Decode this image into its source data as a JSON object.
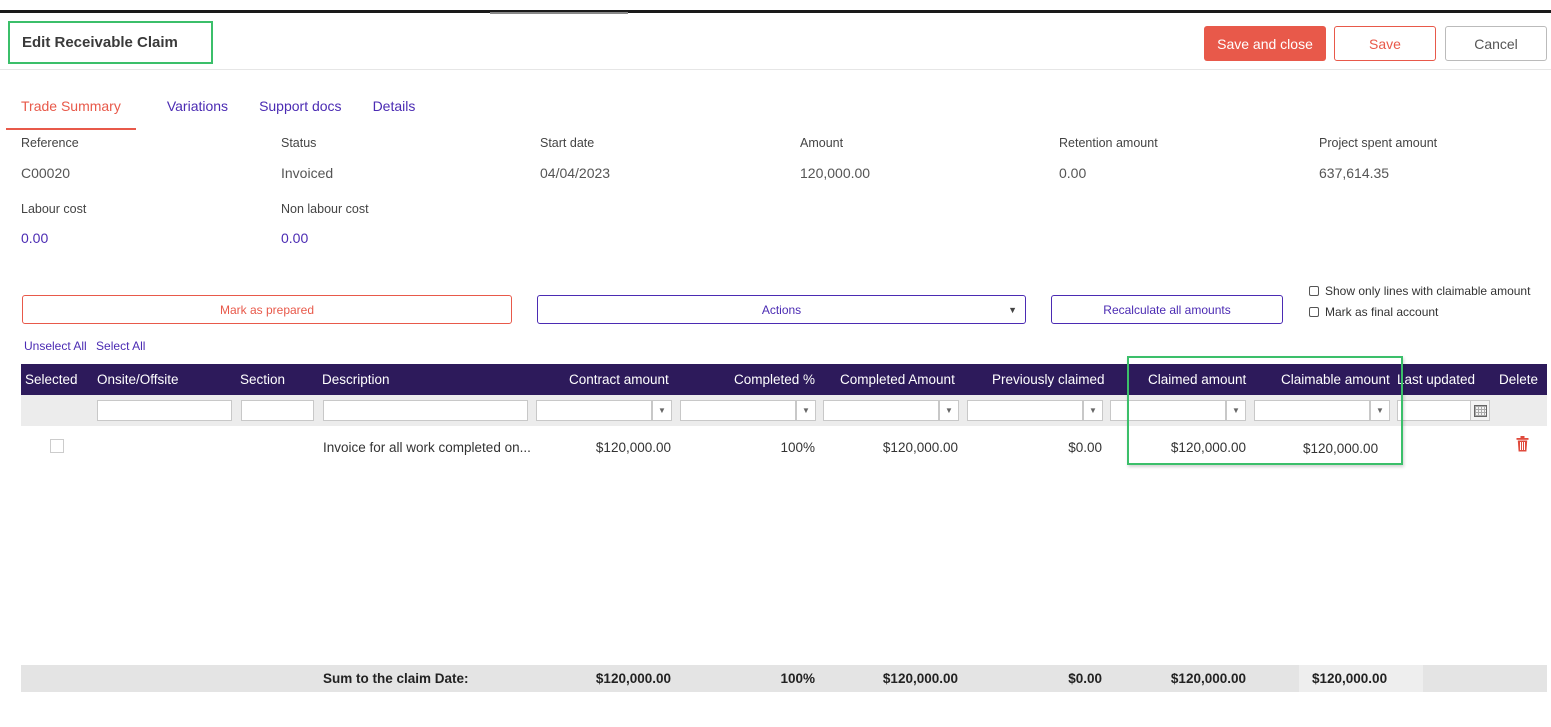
{
  "header": {
    "title": "Edit Receivable Claim",
    "save_close_label": "Save and close",
    "save_label": "Save",
    "cancel_label": "Cancel"
  },
  "tabs": [
    "Trade Summary",
    "Variations",
    "Support docs",
    "Details"
  ],
  "summary": {
    "reference": {
      "label": "Reference",
      "value": "C00020"
    },
    "status": {
      "label": "Status",
      "value": "Invoiced"
    },
    "start_date": {
      "label": "Start date",
      "value": "04/04/2023"
    },
    "amount": {
      "label": "Amount",
      "value": "120,000.00"
    },
    "retention_amount": {
      "label": "Retention amount",
      "value": "0.00"
    },
    "project_spent_amount": {
      "label": "Project spent amount",
      "value": "637,614.35"
    },
    "labour_cost": {
      "label": "Labour cost",
      "value": "0.00"
    },
    "non_labour_cost": {
      "label": "Non labour cost",
      "value": "0.00"
    }
  },
  "actions": {
    "mark_prepared": "Mark as prepared",
    "actions_dropdown": "Actions",
    "recalculate": "Recalculate all amounts",
    "show_claimable_only": "Show only lines with claimable amount",
    "mark_final": "Mark as final account",
    "unselect_all": "Unselect All",
    "select_all": "Select All"
  },
  "table": {
    "columns": [
      "Selected",
      "Onsite/Offsite",
      "Section",
      "Description",
      "Contract amount",
      "Completed %",
      "Completed Amount",
      "Previously claimed",
      "Claimed amount",
      "Claimable amount",
      "Last updated",
      "Delete"
    ],
    "rows": [
      {
        "description": "Invoice for all work completed on...",
        "contract_amount": "$120,000.00",
        "completed_pct": "100%",
        "completed_amount": "$120,000.00",
        "previously_claimed": "$0.00",
        "claimed_amount": "$120,000.00",
        "claimable_amount": "$120,000.00"
      }
    ],
    "totals": {
      "label": "Sum to the claim Date:",
      "contract_amount": "$120,000.00",
      "completed_pct": "100%",
      "completed_amount": "$120,000.00",
      "previously_claimed": "$0.00",
      "claimed_amount": "$120,000.00",
      "claimable_amount": "$120,000.00"
    }
  },
  "colors": {
    "primary_red": "#e8594a",
    "primary_purple": "#4b2bb3",
    "table_header_bg": "#2d1a5b",
    "highlight_green": "#3bbf6a"
  }
}
